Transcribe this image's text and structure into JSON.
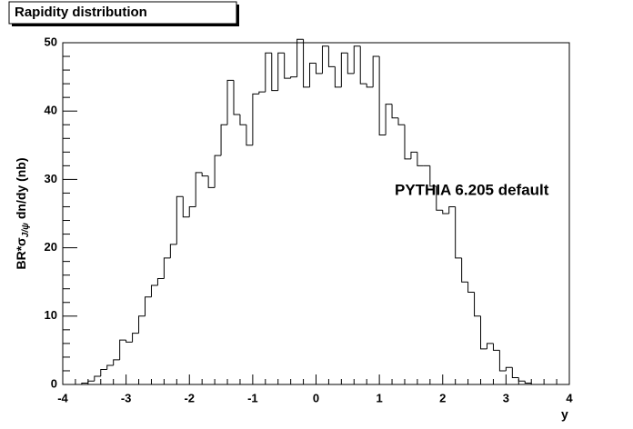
{
  "chart_data": {
    "type": "histogram",
    "title": "Rapidity distribution",
    "y_label": {
      "main": "BR*σ",
      "sub": "J/ψ",
      "rest": "dn/dy (nb)"
    },
    "x_label": "y",
    "annotation": "PYTHIA 6.205 default",
    "color": "#000000",
    "bins": [
      -4,
      -3.9,
      -3.8,
      -3.7,
      -3.6,
      -3.5,
      -3.4,
      -3.3,
      -3.2,
      -3.1,
      -3,
      -2.9,
      -2.8,
      -2.7,
      -2.6,
      -2.5,
      -2.4,
      -2.3,
      -2.2,
      -2.1,
      -2,
      -1.9,
      -1.8,
      -1.7,
      -1.6,
      -1.5,
      -1.4,
      -1.3,
      -1.2,
      -1.1,
      -1,
      -0.9,
      -0.8,
      -0.7,
      -0.6,
      -0.5,
      -0.4,
      -0.3,
      -0.2,
      -0.1,
      0,
      0.1,
      0.2,
      0.3,
      0.4,
      0.5,
      0.6,
      0.7,
      0.8,
      0.9,
      1,
      1.1,
      1.2,
      1.3,
      1.4,
      1.5,
      1.6,
      1.7,
      1.8,
      1.9,
      2,
      2.1,
      2.2,
      2.3,
      2.4,
      2.5,
      2.6,
      2.7,
      2.8,
      2.9,
      3,
      3.1,
      3.2,
      3.3,
      3.4,
      3.5,
      3.6,
      3.7,
      3.8,
      3.9,
      4
    ],
    "counts": [
      0,
      0,
      0,
      0.2,
      0.5,
      1.2,
      2.2,
      2.8,
      3.6,
      6.5,
      6.2,
      7.5,
      10,
      12.8,
      14.5,
      15.5,
      18.5,
      20.5,
      27.5,
      24.5,
      26,
      31,
      30.5,
      28.8,
      33.5,
      38,
      44.5,
      39.5,
      38,
      35,
      42.5,
      42.8,
      48.5,
      43,
      48.5,
      44.8,
      45,
      50.5,
      43.5,
      47,
      45.5,
      49.5,
      46.5,
      43.5,
      48.5,
      45.5,
      49.5,
      44,
      43.5,
      48,
      36.5,
      41,
      39,
      38,
      33,
      34,
      32,
      32,
      29,
      25.5,
      25,
      26,
      18.5,
      15,
      13.5,
      10,
      5.2,
      6,
      5,
      2,
      2.5,
      1,
      0.5,
      0.2,
      0,
      0,
      0,
      0,
      0,
      0
    ],
    "xlim": [
      -4,
      4
    ],
    "ylim": [
      0,
      50
    ],
    "xticks": [
      -4,
      -3,
      -2,
      -1,
      0,
      1,
      2,
      3,
      4
    ],
    "yticks": [
      0,
      10,
      20,
      30,
      40,
      50
    ]
  }
}
